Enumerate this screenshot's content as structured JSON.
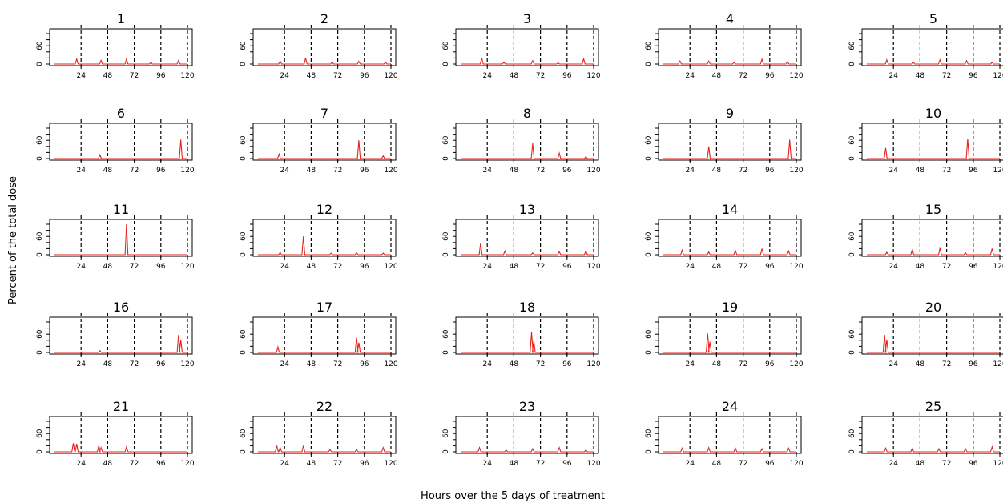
{
  "chart_data": {
    "type": "line",
    "layout": "small-multiples 5x5",
    "xlabel": "Hours over the 5 days of treatment",
    "ylabel": "Percent of the total dose",
    "xlim": [
      0,
      120
    ],
    "ylim": [
      0,
      100
    ],
    "x_ticks": [
      24,
      48,
      72,
      96,
      120
    ],
    "y_ticks": [
      0,
      60
    ],
    "vlines": [
      24,
      48,
      72,
      96,
      120
    ],
    "line_color": "#e8211d",
    "vline_color": "#000000",
    "panels": [
      {
        "title": "1",
        "peaks": [
          [
            20,
            17
          ],
          [
            42,
            12
          ],
          [
            65,
            17
          ],
          [
            87,
            6
          ],
          [
            112,
            12
          ]
        ]
      },
      {
        "title": "2",
        "peaks": [
          [
            20,
            10
          ],
          [
            43,
            20
          ],
          [
            67,
            7
          ],
          [
            91,
            9
          ],
          [
            115,
            6
          ]
        ]
      },
      {
        "title": "3",
        "peaks": [
          [
            19,
            20
          ],
          [
            39,
            6
          ],
          [
            65,
            11
          ],
          [
            88,
            4
          ],
          [
            111,
            18
          ]
        ]
      },
      {
        "title": "4",
        "peaks": [
          [
            15,
            10
          ],
          [
            41,
            10
          ],
          [
            64,
            6
          ],
          [
            89,
            16
          ],
          [
            112,
            8
          ]
        ]
      },
      {
        "title": "5",
        "peaks": [
          [
            18,
            14
          ],
          [
            42,
            5
          ],
          [
            66,
            14
          ],
          [
            90,
            11
          ],
          [
            113,
            6
          ]
        ]
      },
      {
        "title": "6",
        "peaks": [
          [
            41,
            12
          ],
          [
            114,
            62
          ]
        ]
      },
      {
        "title": "7",
        "peaks": [
          [
            19,
            15
          ],
          [
            91,
            60
          ],
          [
            113,
            9
          ]
        ]
      },
      {
        "title": "8",
        "peaks": [
          [
            65,
            50
          ],
          [
            89,
            18
          ],
          [
            113,
            6
          ]
        ]
      },
      {
        "title": "9",
        "peaks": [
          [
            41,
            40
          ],
          [
            114,
            62
          ]
        ]
      },
      {
        "title": "10",
        "peaks": [
          [
            17,
            35
          ],
          [
            91,
            65
          ]
        ]
      },
      {
        "title": "11",
        "peaks": [
          [
            65,
            100
          ]
        ]
      },
      {
        "title": "12",
        "peaks": [
          [
            20,
            7
          ],
          [
            41,
            60
          ],
          [
            66,
            5
          ],
          [
            89,
            6
          ],
          [
            113,
            5
          ]
        ]
      },
      {
        "title": "13",
        "peaks": [
          [
            18,
            38
          ],
          [
            40,
            12
          ],
          [
            65,
            6
          ],
          [
            89,
            10
          ],
          [
            113,
            12
          ]
        ]
      },
      {
        "title": "14",
        "peaks": [
          [
            17,
            15
          ],
          [
            41,
            9
          ],
          [
            65,
            14
          ],
          [
            89,
            20
          ],
          [
            113,
            12
          ]
        ]
      },
      {
        "title": "15",
        "peaks": [
          [
            18,
            8
          ],
          [
            41,
            18
          ],
          [
            66,
            22
          ],
          [
            89,
            6
          ],
          [
            113,
            20
          ]
        ]
      },
      {
        "title": "16",
        "peaks": [
          [
            41,
            6
          ],
          [
            112,
            58
          ],
          [
            114,
            40
          ]
        ]
      },
      {
        "title": "17",
        "peaks": [
          [
            18,
            18
          ],
          [
            89,
            48
          ],
          [
            91,
            32
          ]
        ]
      },
      {
        "title": "18",
        "peaks": [
          [
            64,
            66
          ],
          [
            66,
            38
          ]
        ]
      },
      {
        "title": "19",
        "peaks": [
          [
            40,
            62
          ],
          [
            42,
            35
          ]
        ]
      },
      {
        "title": "20",
        "peaks": [
          [
            16,
            58
          ],
          [
            18,
            42
          ]
        ]
      },
      {
        "title": "21",
        "peaks": [
          [
            17,
            28
          ],
          [
            20,
            26
          ],
          [
            40,
            20
          ],
          [
            42,
            14
          ],
          [
            65,
            16
          ]
        ]
      },
      {
        "title": "22",
        "peaks": [
          [
            17,
            20
          ],
          [
            20,
            14
          ],
          [
            41,
            20
          ],
          [
            65,
            8
          ],
          [
            89,
            8
          ],
          [
            113,
            14
          ]
        ]
      },
      {
        "title": "23",
        "peaks": [
          [
            17,
            14
          ],
          [
            41,
            6
          ],
          [
            65,
            10
          ],
          [
            89,
            14
          ],
          [
            113,
            6
          ]
        ]
      },
      {
        "title": "24",
        "peaks": [
          [
            17,
            12
          ],
          [
            41,
            14
          ],
          [
            65,
            12
          ],
          [
            89,
            10
          ],
          [
            113,
            12
          ]
        ]
      },
      {
        "title": "25",
        "peaks": [
          [
            17,
            12
          ],
          [
            41,
            12
          ],
          [
            65,
            10
          ],
          [
            89,
            10
          ],
          [
            113,
            16
          ]
        ]
      }
    ]
  }
}
